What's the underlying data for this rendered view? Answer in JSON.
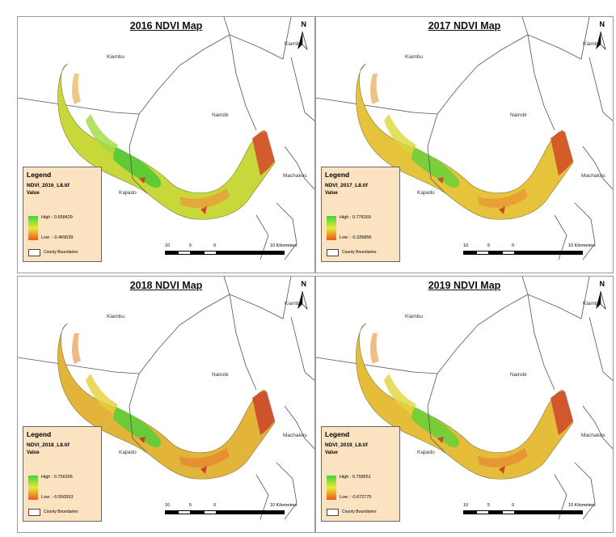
{
  "figure": {
    "panels": [
      {
        "title": "2016 NDVI Map",
        "north_label": "N",
        "labels": {
          "kiambu_top": "Kiambu",
          "kiambu_left": "Kiambu",
          "nairobi": "Nairobi",
          "kajiado": "Kajiado",
          "machakos": "Machakos"
        },
        "legend": {
          "title": "Legend",
          "layer": "NDVI_2016_L8.tif",
          "value_label": "Value",
          "high": "High : 0.658429",
          "low": "Low : -0.465639",
          "county": "County Boundaries"
        },
        "scale": {
          "ticks": [
            "10",
            "5",
            "0",
            "10 Kilometers"
          ]
        },
        "colors": {
          "base": "#c8d83a",
          "mid": "#9edb3e",
          "dense": "#52c936",
          "dry": "#e8a03a",
          "bare": "#d6452a"
        }
      },
      {
        "title": "2017 NDVI Map",
        "north_label": "N",
        "labels": {
          "kiambu_top": "Kiambu",
          "kiambu_left": "Kiambu",
          "nairobi": "Nairobi",
          "kajiado": "Kajiado",
          "machakos": "Machakos"
        },
        "legend": {
          "title": "Legend",
          "layer": "NDVI_2017_L8.tif",
          "value_label": "Value",
          "high": "High : 0.778169",
          "low": "Low : -0.335856",
          "county": "County Boundaries"
        },
        "scale": {
          "ticks": [
            "10",
            "5",
            "0",
            "10 Kilometers"
          ]
        },
        "colors": {
          "base": "#e6c33a",
          "mid": "#d8d83a",
          "dense": "#6fd13a",
          "dry": "#e89a34",
          "bare": "#cf4a26"
        }
      },
      {
        "title": "2018 NDVI Map",
        "north_label": "N",
        "labels": {
          "kiambu_top": "Kiambu",
          "kiambu_left": "Kiambu",
          "nairobi": "Nairobi",
          "kajiado": "Kajiado",
          "machakos": "Machakos"
        },
        "legend": {
          "title": "Legend",
          "layer": "NDVI_2018_L8.tif",
          "value_label": "Value",
          "high": "High : 0.756306",
          "low": "Low : -0.550553",
          "county": "County Boundaries"
        },
        "scale": {
          "ticks": [
            "10",
            "5",
            "0",
            "10 Kilometers"
          ]
        },
        "colors": {
          "base": "#e3b43a",
          "mid": "#e3cf3a",
          "dense": "#5ccd38",
          "dry": "#e58a30",
          "bare": "#c9432a"
        }
      },
      {
        "title": "2019 NDVI Map",
        "north_label": "N",
        "labels": {
          "kiambu_top": "Kiambu",
          "kiambu_left": "Kiambu",
          "nairobi": "Nairobi",
          "kajiado": "Kajiado",
          "machakos": "Machakos"
        },
        "legend": {
          "title": "Legend",
          "layer": "NDVI_2019_L8.tif",
          "value_label": "Value",
          "high": "High : 0.758551",
          "low": "Low : -0.672775",
          "county": "County Boundaries"
        },
        "scale": {
          "ticks": [
            "10",
            "5",
            "0",
            "10 Kilometers"
          ]
        },
        "colors": {
          "base": "#e6bd3a",
          "mid": "#e1d63a",
          "dense": "#6ccf3a",
          "dry": "#e59133",
          "bare": "#cc472a"
        }
      }
    ]
  }
}
